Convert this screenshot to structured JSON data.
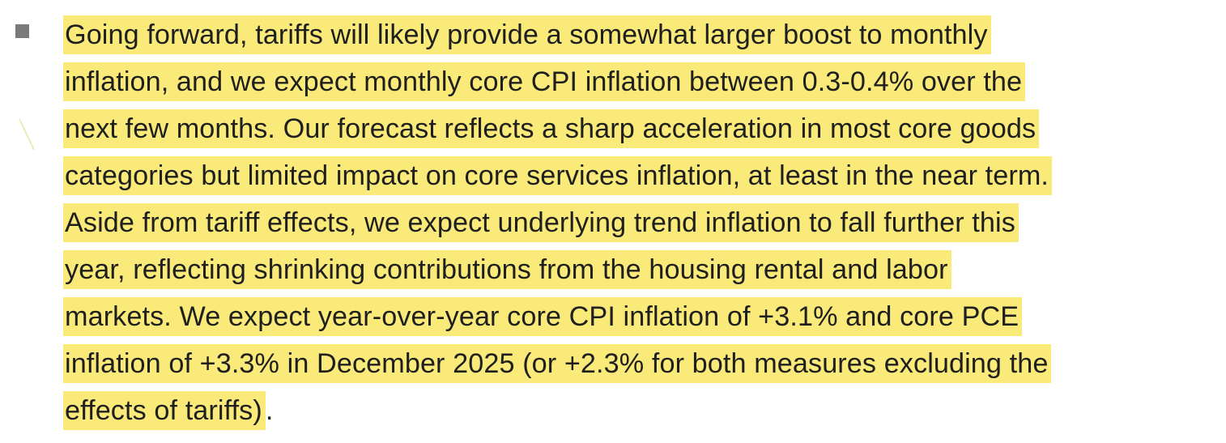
{
  "highlight_color": "#f9ea7a",
  "bullet_color": "#7a7a7a",
  "paragraph": {
    "lines": [
      "Going forward, tariffs will likely provide a somewhat larger boost to monthly",
      "inflation, and we expect monthly core CPI inflation between 0.3-0.4% over the",
      "next few months. Our forecast reflects a sharp acceleration in most core goods",
      "categories but limited impact on core services inflation, at least in the near term.",
      "Aside from tariff effects, we expect underlying trend inflation to fall further this",
      "year, reflecting shrinking contributions from the housing rental and labor",
      "markets. We expect year-over-year core CPI inflation of +3.1% and core PCE",
      "inflation of +3.3% in December 2025 (or +2.3% for both measures excluding the",
      "effects of tariffs)"
    ],
    "trailing_punctuation": "."
  }
}
